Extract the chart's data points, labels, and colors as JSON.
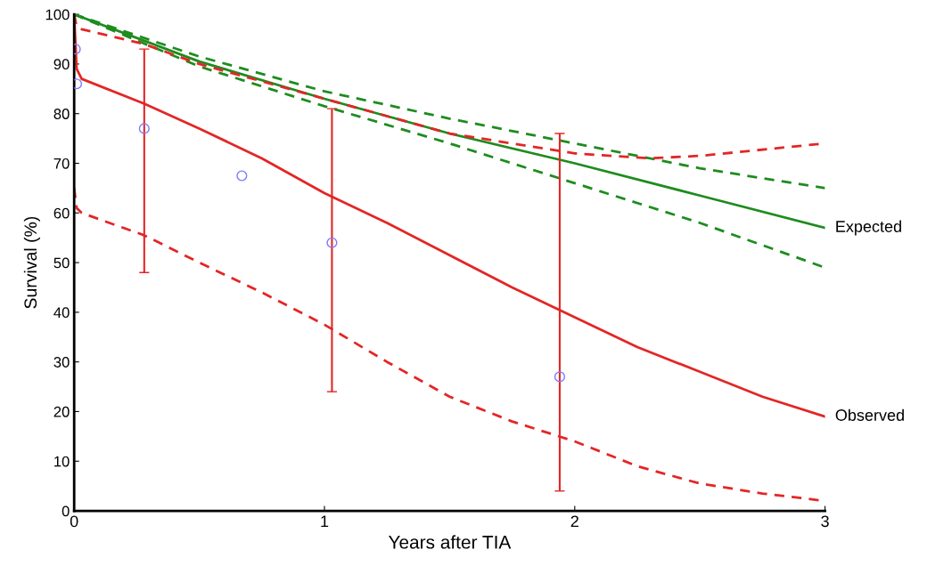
{
  "chart_data": {
    "type": "line",
    "xlabel": "Years after TIA",
    "ylabel": "Survival (%)",
    "xlim": [
      0,
      3
    ],
    "ylim": [
      0,
      100
    ],
    "xticks": [
      0,
      1,
      2,
      3
    ],
    "yticks": [
      0,
      10,
      20,
      30,
      40,
      50,
      60,
      70,
      80,
      90,
      100
    ],
    "grid": false,
    "legend": false,
    "marker": "none",
    "series": [
      {
        "name": "Expected",
        "color": "#1e8c1e",
        "line_style": "solid",
        "x": [
          0,
          0.5,
          1.0,
          1.5,
          2.0,
          2.5,
          3.0
        ],
        "values": [
          100,
          90.5,
          83,
          76,
          70,
          63.5,
          57
        ]
      },
      {
        "color": "#1e8c1e",
        "line_style": "dashed",
        "x": [
          0,
          0.5,
          1.0,
          1.5,
          2.0,
          2.5,
          3.0
        ],
        "values": [
          100,
          91.5,
          84.5,
          79,
          74,
          69,
          65
        ]
      },
      {
        "color": "#1e8c1e",
        "line_style": "dashed",
        "x": [
          0,
          0.5,
          1.0,
          1.5,
          2.0,
          2.5,
          3.0
        ],
        "values": [
          100,
          89.5,
          81.5,
          74,
          66,
          58,
          49
        ]
      },
      {
        "name": "Observed",
        "color": "#e32626",
        "line_style": "solid",
        "x": [
          0,
          0.01,
          0.03,
          0.28,
          0.5,
          0.75,
          1.0,
          1.25,
          1.5,
          1.75,
          2.0,
          2.25,
          2.5,
          2.75,
          3.0
        ],
        "values": [
          100,
          89,
          87,
          82,
          77,
          71,
          64,
          58,
          51.5,
          45,
          39,
          33,
          28,
          23,
          19
        ]
      },
      {
        "color": "#e32626",
        "line_style": "dashed",
        "x": [
          0,
          0.01,
          0.03,
          0.28,
          0.5,
          0.75,
          1.0,
          1.25,
          1.5,
          1.75,
          2.0,
          2.25,
          2.5,
          2.75,
          3.0
        ],
        "values": [
          65,
          61,
          60,
          55.5,
          50,
          44,
          37.5,
          30,
          23,
          18,
          14,
          9,
          5.5,
          3.5,
          2
        ]
      },
      {
        "color": "#e32626",
        "line_style": "dashed",
        "x": [
          0,
          0.01,
          0.03,
          0.28,
          0.5,
          1.0,
          1.5,
          2.0,
          2.3,
          2.5,
          3.0
        ],
        "values": [
          100,
          97.5,
          97,
          94,
          90,
          83,
          76,
          72,
          71,
          71.5,
          74
        ]
      },
      {
        "type": "scatter",
        "color": "#7a7aff",
        "marker": "circle",
        "x": [
          0.005,
          0.01,
          0.28,
          0.67,
          1.03,
          1.94
        ],
        "values": [
          93,
          86,
          77,
          67.5,
          54,
          27
        ],
        "errors": [
          null,
          null,
          [
            48,
            93
          ],
          null,
          [
            24,
            81
          ],
          [
            4,
            76
          ]
        ]
      }
    ]
  }
}
